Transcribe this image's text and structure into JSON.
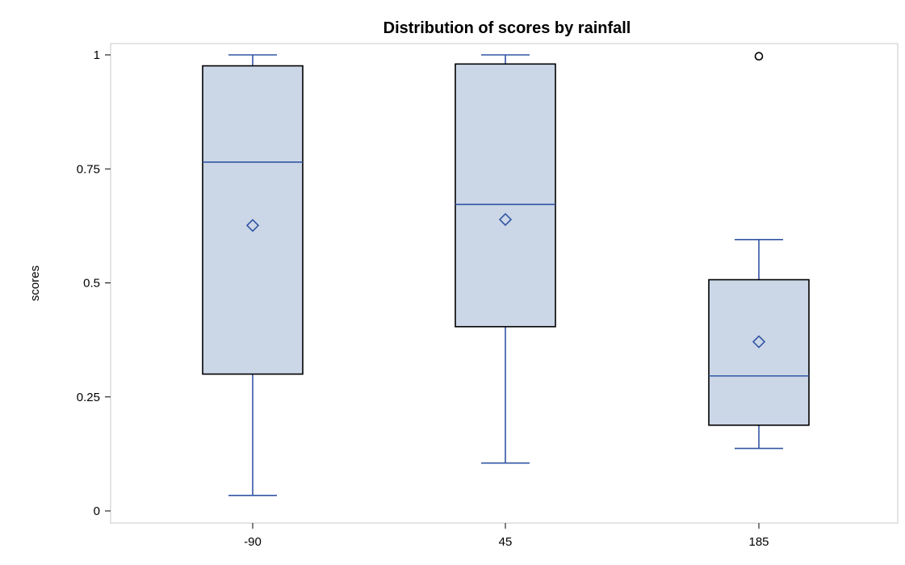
{
  "chart_data": {
    "type": "boxplot",
    "title": "Distribution of scores by rainfall",
    "xlabel": "",
    "ylabel": "scores",
    "categories": [
      "-90",
      "45",
      "185"
    ],
    "ylim": [
      0,
      1
    ],
    "yticks": [
      {
        "value": 0,
        "label": "0"
      },
      {
        "value": 0.25,
        "label": "0.25"
      },
      {
        "value": 0.5,
        "label": "0.5"
      },
      {
        "value": 0.75,
        "label": "0.75"
      },
      {
        "value": 1,
        "label": "1"
      }
    ],
    "boxes": [
      {
        "category": "-90",
        "whisker_low": 0.034,
        "q1": 0.3,
        "median": 0.765,
        "q3": 0.976,
        "whisker_high": 1.0,
        "mean": 0.626,
        "outliers": []
      },
      {
        "category": "45",
        "whisker_low": 0.105,
        "q1": 0.404,
        "median": 0.672,
        "q3": 0.98,
        "whisker_high": 1.0,
        "mean": 0.639,
        "outliers": []
      },
      {
        "category": "185",
        "whisker_low": 0.137,
        "q1": 0.188,
        "median": 0.296,
        "q3": 0.507,
        "whisker_high": 0.595,
        "mean": 0.371,
        "outliers": [
          0.997
        ]
      }
    ],
    "grid": false,
    "legend": "none",
    "colors": {
      "box_fill": "#cbd7e7",
      "box_edge": "#000000",
      "median_whisker": "#3255a4",
      "mean_marker": "#3255a4",
      "outlier": "#000000",
      "frame": "#c8c8c8"
    }
  }
}
